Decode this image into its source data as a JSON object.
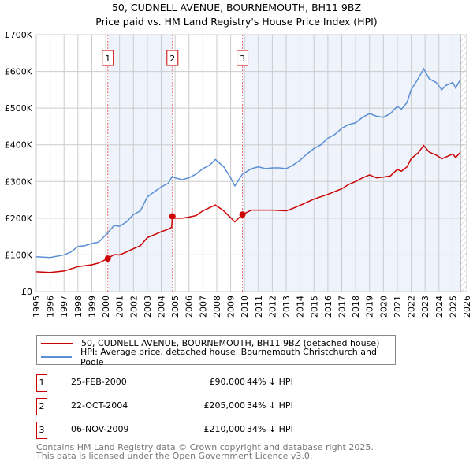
{
  "title": "50, CUDNELL AVENUE, BOURNEMOUTH, BH11 9BZ",
  "subtitle": "Price paid vs. HM Land Registry's House Price Index (HPI)",
  "chart_data": {
    "type": "line",
    "xlim": [
      1995,
      2026
    ],
    "ylim": [
      0,
      700000
    ],
    "yticks": [
      {
        "v": 0,
        "l": "£0"
      },
      {
        "v": 100000,
        "l": "£100K"
      },
      {
        "v": 200000,
        "l": "£200K"
      },
      {
        "v": 300000,
        "l": "£300K"
      },
      {
        "v": 400000,
        "l": "£400K"
      },
      {
        "v": 500000,
        "l": "£500K"
      },
      {
        "v": 600000,
        "l": "£600K"
      },
      {
        "v": 700000,
        "l": "£700K"
      }
    ],
    "xticks": [
      "1995",
      "1996",
      "1997",
      "1998",
      "1999",
      "2000",
      "2001",
      "2002",
      "2003",
      "2004",
      "2005",
      "2006",
      "2007",
      "2008",
      "2009",
      "2010",
      "2011",
      "2012",
      "2013",
      "2014",
      "2015",
      "2016",
      "2017",
      "2018",
      "2019",
      "2020",
      "2021",
      "2022",
      "2023",
      "2024",
      "2025",
      "2026"
    ],
    "series": [
      {
        "name": "50, CUDNELL AVENUE, BOURNEMOUTH, BH11 9BZ (detached house)",
        "color": "#cc0000",
        "points": [
          [
            1995,
            54
          ],
          [
            1996,
            52
          ],
          [
            1997,
            56
          ],
          [
            1998,
            68
          ],
          [
            1999,
            73
          ],
          [
            1999.5,
            78
          ],
          [
            2000.15,
            90
          ],
          [
            2000.6,
            101
          ],
          [
            2001,
            100
          ],
          [
            2001.5,
            108
          ],
          [
            2002,
            117
          ],
          [
            2002.5,
            125
          ],
          [
            2003,
            147
          ],
          [
            2003.5,
            155
          ],
          [
            2004,
            163
          ],
          [
            2004.5,
            170
          ],
          [
            2004.75,
            175
          ],
          [
            2004.81,
            205
          ],
          [
            2005,
            200
          ],
          [
            2005.5,
            200
          ],
          [
            2006,
            203
          ],
          [
            2006.5,
            207
          ],
          [
            2007,
            220
          ],
          [
            2007.9,
            236
          ],
          [
            2008.5,
            220
          ],
          [
            2009.3,
            190
          ],
          [
            2009.85,
            210
          ],
          [
            2010.5,
            222
          ],
          [
            2011,
            222
          ],
          [
            2012,
            222
          ],
          [
            2013,
            220
          ],
          [
            2013.5,
            227
          ],
          [
            2014,
            235
          ],
          [
            2015,
            252
          ],
          [
            2016,
            265
          ],
          [
            2017,
            280
          ],
          [
            2017.5,
            292
          ],
          [
            2018,
            300
          ],
          [
            2018.5,
            310
          ],
          [
            2019,
            318
          ],
          [
            2019.5,
            310
          ],
          [
            2020,
            312
          ],
          [
            2020.5,
            315
          ],
          [
            2021,
            333
          ],
          [
            2021.3,
            328
          ],
          [
            2021.7,
            340
          ],
          [
            2022,
            362
          ],
          [
            2022.5,
            378
          ],
          [
            2022.9,
            398
          ],
          [
            2023.3,
            380
          ],
          [
            2023.8,
            372
          ],
          [
            2024.2,
            362
          ],
          [
            2024.6,
            368
          ],
          [
            2025,
            375
          ],
          [
            2025.2,
            365
          ],
          [
            2025.5,
            378
          ]
        ]
      },
      {
        "name": "HPI: Average price, detached house, Bournemouth Christchurch and Poole",
        "color": "#5b8fd4",
        "points": [
          [
            1995,
            95
          ],
          [
            1996,
            93
          ],
          [
            1997,
            100
          ],
          [
            1997.5,
            108
          ],
          [
            1998,
            123
          ],
          [
            1998.5,
            125
          ],
          [
            1999,
            131
          ],
          [
            1999.5,
            135
          ],
          [
            2000.15,
            160
          ],
          [
            2000.6,
            180
          ],
          [
            2001,
            178
          ],
          [
            2001.5,
            190
          ],
          [
            2002,
            210
          ],
          [
            2002.5,
            220
          ],
          [
            2003,
            258
          ],
          [
            2003.5,
            272
          ],
          [
            2004,
            285
          ],
          [
            2004.5,
            295
          ],
          [
            2004.8,
            314
          ],
          [
            2005,
            310
          ],
          [
            2005.5,
            305
          ],
          [
            2006,
            310
          ],
          [
            2006.5,
            320
          ],
          [
            2007,
            335
          ],
          [
            2007.5,
            345
          ],
          [
            2007.9,
            360
          ],
          [
            2008.5,
            340
          ],
          [
            2009,
            310
          ],
          [
            2009.3,
            288
          ],
          [
            2009.85,
            320
          ],
          [
            2010.5,
            335
          ],
          [
            2011,
            340
          ],
          [
            2011.5,
            335
          ],
          [
            2012,
            337
          ],
          [
            2012.5,
            337
          ],
          [
            2013,
            335
          ],
          [
            2013.5,
            345
          ],
          [
            2014,
            358
          ],
          [
            2014.5,
            375
          ],
          [
            2015,
            390
          ],
          [
            2015.5,
            400
          ],
          [
            2016,
            418
          ],
          [
            2016.5,
            428
          ],
          [
            2017,
            445
          ],
          [
            2017.5,
            455
          ],
          [
            2018,
            460
          ],
          [
            2018.5,
            475
          ],
          [
            2019,
            485
          ],
          [
            2019.5,
            478
          ],
          [
            2020,
            475
          ],
          [
            2020.5,
            485
          ],
          [
            2021,
            505
          ],
          [
            2021.3,
            497
          ],
          [
            2021.7,
            515
          ],
          [
            2022,
            550
          ],
          [
            2022.5,
            580
          ],
          [
            2022.9,
            607
          ],
          [
            2023.3,
            580
          ],
          [
            2023.8,
            570
          ],
          [
            2024.2,
            550
          ],
          [
            2024.5,
            562
          ],
          [
            2025,
            570
          ],
          [
            2025.2,
            555
          ],
          [
            2025.5,
            575
          ]
        ]
      }
    ],
    "sales": [
      {
        "label": "1",
        "x": 2000.15,
        "y": 90
      },
      {
        "label": "2",
        "x": 2004.81,
        "y": 205
      },
      {
        "label": "3",
        "x": 2009.85,
        "y": 210
      }
    ],
    "forecast_from": 2025.55
  },
  "legend": [
    "50, CUDNELL AVENUE, BOURNEMOUTH, BH11 9BZ (detached house)",
    "HPI: Average price, detached house, Bournemouth Christchurch and Poole"
  ],
  "transactions": [
    {
      "n": "1",
      "date": "25-FEB-2000",
      "price": "£90,000",
      "hpi": "44% ↓ HPI"
    },
    {
      "n": "2",
      "date": "22-OCT-2004",
      "price": "£205,000",
      "hpi": "34% ↓ HPI"
    },
    {
      "n": "3",
      "date": "06-NOV-2009",
      "price": "£210,000",
      "hpi": "34% ↓ HPI"
    }
  ],
  "footer": [
    "Contains HM Land Registry data © Crown copyright and database right 2025.",
    "This data is licensed under the Open Government Licence v3.0."
  ]
}
